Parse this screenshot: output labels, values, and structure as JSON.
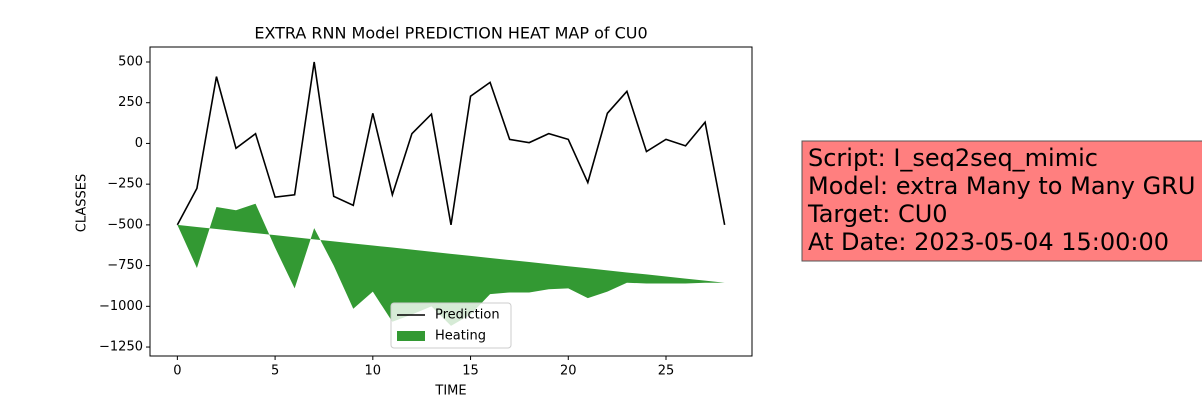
{
  "chart_data": {
    "type": "line",
    "title": "EXTRA RNN Model PREDICTION HEAT MAP of CU0",
    "xlabel": "TIME",
    "ylabel": "CLASSES",
    "x": [
      0,
      1,
      2,
      3,
      4,
      5,
      6,
      7,
      8,
      9,
      10,
      11,
      12,
      13,
      14,
      15,
      16,
      17,
      18,
      19,
      20,
      21,
      22,
      23,
      24,
      25,
      26,
      27,
      28
    ],
    "series": [
      {
        "name": "Prediction",
        "color": "#000000",
        "values": [
          -500,
          -276,
          410,
          -30,
          60,
          -330,
          -315,
          500,
          -325,
          -380,
          185,
          -315,
          60,
          180,
          -500,
          290,
          375,
          25,
          5,
          60,
          25,
          -240,
          185,
          320,
          -50,
          25,
          -15,
          130,
          -500
        ]
      },
      {
        "name": "Heating",
        "color": "#339933",
        "fill_between": true,
        "values": [
          -500,
          -765,
          -390,
          -410,
          -370,
          -640,
          -890,
          -520,
          -750,
          -1015,
          -910,
          -1095,
          -1050,
          -1000,
          -1120,
          -1050,
          -925,
          -915,
          -915,
          -895,
          -890,
          -950,
          -910,
          -855,
          -860,
          -860,
          -860,
          -855,
          -855
        ],
        "base": [
          -500,
          -513,
          -525,
          -538,
          -551,
          -563,
          -576,
          -589,
          -601,
          -614,
          -627,
          -639,
          -652,
          -665,
          -678,
          -690,
          -703,
          -716,
          -728,
          -741,
          -754,
          -766,
          -779,
          -792,
          -804,
          -817,
          -830,
          -842,
          -855
        ]
      }
    ],
    "xlim": [
      -1.4,
      29.4
    ],
    "ylim": [
      -1305,
      592
    ],
    "xticks": [
      0,
      5,
      10,
      15,
      20,
      25
    ],
    "yticks": [
      500,
      250,
      0,
      {
        "value": -250,
        "label": "−250"
      },
      {
        "value": -500,
        "label": "−500"
      },
      {
        "value": -750,
        "label": "−750"
      },
      {
        "value": -1000,
        "label": "−1000"
      },
      {
        "value": -1250,
        "label": "−1250"
      }
    ],
    "legend": "lower center",
    "annotation": [
      "Script: I_seq2seq_mimic",
      "Model: extra Many to Many GRU",
      "Target: CU0",
      "At Date: 2023-05-04 15:00:00"
    ],
    "annotation_color": "#ff7f7f"
  }
}
